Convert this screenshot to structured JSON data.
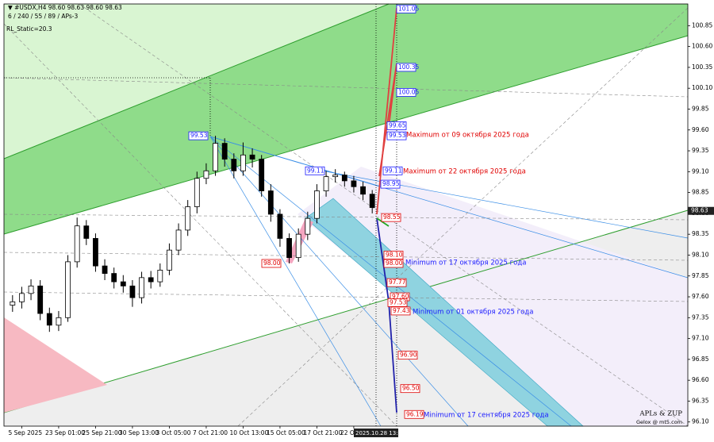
{
  "chart_data": {
    "type": "candlestick",
    "header": "▼ #USDX,H4  98.60 98.63 98.60 98.63",
    "subheader": "6 / 240 / 55 / 89 / APs-3",
    "indicator": "RL_Static=20.3",
    "watermark": [
      "APLs & ZUP",
      "Gelox @ mt5.com"
    ],
    "cursor_label": "2025.10.28 13:06",
    "categories": [
      null,
      "5 Sep 2025",
      null,
      null,
      null,
      "23 Sep 01:00",
      null,
      null,
      null,
      "25 Sep 21:00",
      null,
      null,
      null,
      "30 Sep 13:00",
      null,
      null,
      null,
      "3 Oct 05:00",
      null,
      null,
      null,
      "7 Oct 21:00",
      null,
      null,
      null,
      "10 Oct 13:00",
      null,
      null,
      null,
      "15 Oct 05:00",
      null,
      null,
      null,
      "17 Oct 21:00",
      null,
      null,
      null,
      "22 Oct 13:",
      null,
      null
    ],
    "open": [
      97.5,
      97.54,
      97.64,
      97.73,
      97.4,
      97.26,
      97.35,
      98.02,
      98.45,
      98.3,
      97.97,
      97.88,
      97.78,
      97.73,
      97.59,
      97.83,
      97.78,
      97.92,
      98.16,
      98.4,
      98.68,
      99.02,
      99.11,
      99.44,
      99.25,
      99.11,
      99.3,
      99.25,
      98.87,
      98.59,
      98.3,
      98.07,
      98.35,
      98.54,
      98.87,
      99.04,
      99.06,
      98.99,
      98.92,
      98.83
    ],
    "high": [
      97.62,
      97.72,
      97.81,
      97.8,
      97.47,
      97.43,
      98.1,
      98.55,
      98.52,
      98.36,
      98.05,
      97.95,
      97.86,
      97.8,
      97.9,
      97.91,
      98.0,
      98.24,
      98.48,
      98.76,
      99.1,
      99.2,
      99.53,
      99.5,
      99.32,
      99.45,
      99.38,
      99.3,
      98.95,
      98.65,
      98.36,
      98.42,
      98.62,
      98.95,
      99.11,
      99.13,
      99.1,
      99.05,
      98.98,
      98.88
    ],
    "low": [
      97.42,
      97.46,
      97.56,
      97.32,
      97.18,
      97.19,
      97.3,
      97.95,
      98.22,
      97.9,
      97.8,
      97.7,
      97.65,
      97.48,
      97.52,
      97.7,
      97.72,
      97.86,
      98.1,
      98.33,
      98.6,
      98.95,
      99.05,
      99.16,
      99.02,
      99.05,
      99.15,
      98.8,
      98.5,
      98.2,
      98.0,
      98.02,
      98.28,
      98.48,
      98.8,
      98.97,
      98.92,
      98.85,
      98.76,
      98.6
    ],
    "close": [
      97.54,
      97.64,
      97.73,
      97.4,
      97.26,
      97.35,
      98.02,
      98.45,
      98.3,
      97.97,
      97.88,
      97.78,
      97.73,
      97.59,
      97.83,
      97.78,
      97.92,
      98.16,
      98.4,
      98.68,
      99.02,
      99.11,
      99.44,
      99.25,
      99.11,
      99.3,
      99.25,
      98.87,
      98.59,
      98.3,
      98.07,
      98.35,
      98.54,
      98.87,
      99.04,
      99.06,
      98.99,
      98.92,
      98.83,
      98.67
    ],
    "last_price": 98.63,
    "ylim": [
      96.05,
      101.11
    ],
    "yticks": [
      100.85,
      {
        "value": 100.6,
        "label": "100.60"
      },
      100.35,
      {
        "value": 100.1,
        "label": "100.10"
      },
      99.85,
      {
        "value": 99.6,
        "label": "99.60"
      },
      99.35,
      {
        "value": 99.1,
        "label": "99.10"
      },
      98.85,
      {
        "value": 98.6,
        "label": "98.60"
      },
      98.35,
      {
        "value": 98.1,
        "label": "98.10"
      },
      97.85,
      {
        "value": 97.6,
        "label": "97.60"
      },
      97.35,
      {
        "value": 97.1,
        "label": "97.10"
      },
      96.85,
      {
        "value": 96.6,
        "label": "96.60"
      },
      96.35,
      {
        "value": 96.1,
        "label": "96.10"
      }
    ],
    "levels": [
      {
        "value": 101.05,
        "color": "#1a1aff"
      },
      {
        "value": 100.35,
        "color": "#1a1aff"
      },
      {
        "value": 100.05,
        "color": "#1a1aff"
      },
      {
        "value": 99.65,
        "color": "#1a1aff"
      },
      {
        "value": 99.53,
        "color": "#1a1aff"
      },
      {
        "value": 99.11,
        "color": "#1a1aff"
      },
      {
        "value": 98.95,
        "color": "#1a1aff"
      },
      {
        "value": 98.55,
        "color": "#e00000"
      },
      {
        "value": 98.1,
        "label": "98.10",
        "color": "#e00000"
      },
      {
        "value": 98,
        "label": "98.00",
        "color": "#e00000"
      },
      {
        "value": 97.77,
        "color": "#e00000"
      },
      {
        "value": 97.6,
        "label": "97.60",
        "color": "#e00000"
      },
      {
        "value": 97.53,
        "color": "#e00000"
      },
      {
        "value": 97.43,
        "color": "#e00000"
      },
      {
        "value": 96.9,
        "label": "96.90",
        "color": "#e00000"
      },
      {
        "value": 96.5,
        "label": "96.50",
        "color": "#e00000"
      },
      {
        "value": 96.19,
        "color": "#e00000"
      },
      {
        "value": 99.53,
        "color": "#1a1aff"
      },
      {
        "value": 99.11,
        "color": "#1a1aff"
      },
      {
        "value": 98,
        "label": "98.00",
        "color": "#e00000"
      }
    ],
    "annotations": [
      {
        "text": "Maximum от 09 октября 2025 года",
        "color": "#e00000"
      },
      {
        "text": "Maximum от 22 октября 2025 года",
        "color": "#e00000"
      },
      {
        "text": "Minimum от 17 октября 2025 года",
        "color": "#1a1aff"
      },
      {
        "text": "Minimum от 01 октября 2025 года",
        "color": "#1a1aff"
      },
      {
        "text": "Minimum от 17 сентября 2025 года",
        "color": "#1a1aff"
      }
    ]
  }
}
